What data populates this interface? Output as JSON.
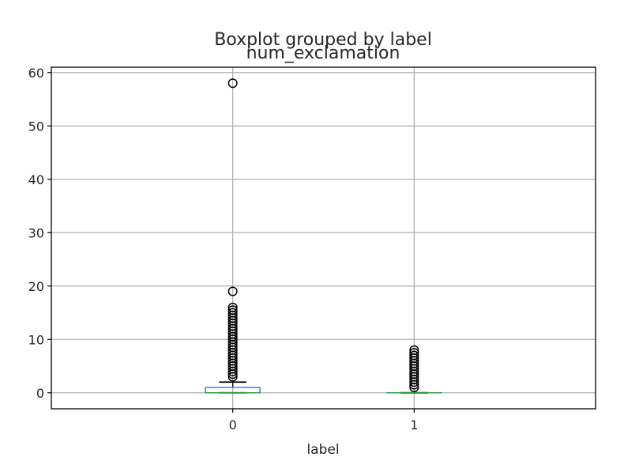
{
  "chart_data": {
    "type": "box",
    "suptitle": "Boxplot grouped by label",
    "title": "num_exclamation",
    "xlabel": "label",
    "ylabel": "",
    "ylim": [
      -3,
      61
    ],
    "yticks": [
      0,
      10,
      20,
      30,
      40,
      50,
      60
    ],
    "grid": true,
    "categories": [
      "0",
      "1"
    ],
    "boxes": [
      {
        "category": "0",
        "q1": 0,
        "median": 0,
        "q3": 1,
        "whisker_low": 0,
        "whisker_high": 2,
        "outliers": [
          3,
          3.5,
          4,
          4.5,
          5,
          5.5,
          6,
          6.5,
          7,
          7.5,
          8,
          8.5,
          9,
          9.5,
          10,
          10.5,
          11,
          11.5,
          12,
          12.5,
          13,
          13.5,
          14,
          14.5,
          15,
          15.5,
          16,
          19,
          58
        ]
      },
      {
        "category": "1",
        "q1": 0,
        "median": 0,
        "q3": 0,
        "whisker_low": 0,
        "whisker_high": 0,
        "outliers": [
          1,
          1.5,
          2,
          2.5,
          3,
          3.5,
          4,
          4.5,
          5,
          5.5,
          6,
          6.5,
          7,
          7.5,
          8
        ]
      }
    ],
    "colors": {
      "box": "#1f77b4",
      "median": "#2ca02c",
      "whisker": "#000000",
      "grid": "#b0b0b0",
      "axes": "#000000"
    }
  }
}
